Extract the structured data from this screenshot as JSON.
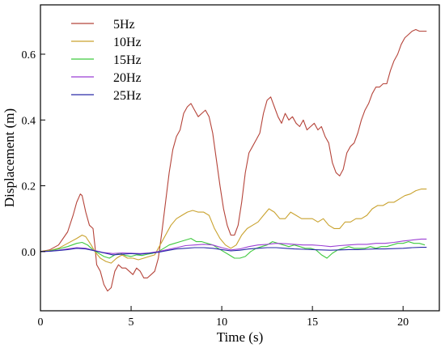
{
  "chart_data": {
    "type": "line",
    "xlabel": "Time (s)",
    "ylabel": "Displacement (m)",
    "xlim": [
      0,
      22
    ],
    "ylim": [
      -0.18,
      0.75
    ],
    "xticks": [
      0,
      5,
      10,
      15,
      20
    ],
    "yticks": [
      0.0,
      0.2,
      0.4,
      0.6
    ],
    "xtick_labels": [
      "0",
      "5",
      "10",
      "15",
      "20"
    ],
    "ytick_labels": [
      "0.0",
      "0.2",
      "0.4",
      "0.6"
    ],
    "grid": false,
    "legend_position": "top-left",
    "series": [
      {
        "name": "5Hz",
        "color": "#b5443a",
        "x": [
          0,
          0.5,
          1.0,
          1.5,
          1.8,
          2.0,
          2.2,
          2.3,
          2.5,
          2.7,
          2.9,
          3.0,
          3.1,
          3.3,
          3.5,
          3.7,
          3.9,
          4.1,
          4.3,
          4.5,
          4.7,
          4.9,
          5.1,
          5.3,
          5.5,
          5.7,
          5.9,
          6.1,
          6.3,
          6.5,
          6.7,
          6.9,
          7.1,
          7.3,
          7.5,
          7.7,
          7.9,
          8.1,
          8.3,
          8.5,
          8.7,
          8.9,
          9.1,
          9.3,
          9.5,
          9.7,
          9.9,
          10.1,
          10.3,
          10.5,
          10.7,
          10.9,
          11.1,
          11.3,
          11.5,
          11.7,
          11.9,
          12.1,
          12.3,
          12.5,
          12.7,
          12.9,
          13.1,
          13.3,
          13.5,
          13.7,
          13.9,
          14.1,
          14.3,
          14.5,
          14.7,
          14.9,
          15.1,
          15.3,
          15.5,
          15.7,
          15.9,
          16.1,
          16.3,
          16.5,
          16.7,
          16.9,
          17.1,
          17.3,
          17.5,
          17.7,
          17.9,
          18.1,
          18.3,
          18.5,
          18.7,
          18.9,
          19.1,
          19.3,
          19.5,
          19.7,
          19.9,
          20.1,
          20.3,
          20.5,
          20.7,
          20.9,
          21.1,
          21.3
        ],
        "y": [
          0,
          0.005,
          0.02,
          0.06,
          0.11,
          0.15,
          0.175,
          0.17,
          0.12,
          0.08,
          0.07,
          0.02,
          -0.04,
          -0.06,
          -0.1,
          -0.12,
          -0.11,
          -0.06,
          -0.04,
          -0.05,
          -0.05,
          -0.06,
          -0.07,
          -0.05,
          -0.06,
          -0.08,
          -0.08,
          -0.07,
          -0.06,
          -0.02,
          0.06,
          0.15,
          0.24,
          0.31,
          0.35,
          0.37,
          0.42,
          0.44,
          0.45,
          0.43,
          0.41,
          0.42,
          0.43,
          0.41,
          0.36,
          0.28,
          0.2,
          0.13,
          0.08,
          0.05,
          0.05,
          0.08,
          0.15,
          0.24,
          0.3,
          0.32,
          0.34,
          0.36,
          0.42,
          0.46,
          0.47,
          0.44,
          0.41,
          0.39,
          0.42,
          0.4,
          0.41,
          0.39,
          0.38,
          0.4,
          0.37,
          0.38,
          0.39,
          0.37,
          0.38,
          0.35,
          0.33,
          0.27,
          0.24,
          0.23,
          0.25,
          0.3,
          0.32,
          0.33,
          0.36,
          0.4,
          0.43,
          0.45,
          0.48,
          0.5,
          0.5,
          0.51,
          0.51,
          0.55,
          0.58,
          0.6,
          0.63,
          0.65,
          0.66,
          0.67,
          0.675,
          0.67,
          0.67,
          0.67
        ]
      },
      {
        "name": "10Hz",
        "color": "#c9a22e",
        "x": [
          0,
          0.5,
          1.0,
          1.5,
          2.0,
          2.3,
          2.5,
          2.8,
          3.0,
          3.3,
          3.6,
          3.9,
          4.2,
          4.5,
          4.8,
          5.1,
          5.4,
          5.7,
          6.0,
          6.3,
          6.6,
          6.9,
          7.2,
          7.5,
          7.8,
          8.1,
          8.4,
          8.7,
          9.0,
          9.3,
          9.6,
          9.9,
          10.2,
          10.5,
          10.8,
          11.1,
          11.4,
          11.7,
          12.0,
          12.3,
          12.6,
          12.9,
          13.2,
          13.5,
          13.8,
          14.1,
          14.4,
          14.7,
          15.0,
          15.3,
          15.6,
          15.9,
          16.2,
          16.5,
          16.8,
          17.1,
          17.4,
          17.7,
          18.0,
          18.3,
          18.6,
          18.9,
          19.2,
          19.5,
          19.8,
          20.1,
          20.4,
          20.7,
          21.0,
          21.3
        ],
        "y": [
          0,
          0.003,
          0.01,
          0.025,
          0.04,
          0.05,
          0.045,
          0.02,
          0,
          -0.02,
          -0.03,
          -0.035,
          -0.02,
          -0.01,
          -0.02,
          -0.02,
          -0.025,
          -0.02,
          -0.015,
          -0.01,
          0.02,
          0.05,
          0.08,
          0.1,
          0.11,
          0.12,
          0.125,
          0.12,
          0.12,
          0.11,
          0.07,
          0.04,
          0.02,
          0.01,
          0.02,
          0.05,
          0.07,
          0.08,
          0.09,
          0.11,
          0.13,
          0.12,
          0.1,
          0.1,
          0.12,
          0.11,
          0.1,
          0.1,
          0.1,
          0.09,
          0.1,
          0.08,
          0.07,
          0.07,
          0.09,
          0.09,
          0.1,
          0.1,
          0.11,
          0.13,
          0.14,
          0.14,
          0.15,
          0.15,
          0.16,
          0.17,
          0.175,
          0.185,
          0.19,
          0.19
        ]
      },
      {
        "name": "15Hz",
        "color": "#3fc93f",
        "x": [
          0,
          0.5,
          1.0,
          1.5,
          2.0,
          2.3,
          2.6,
          2.9,
          3.2,
          3.5,
          3.8,
          4.1,
          4.4,
          4.7,
          5.0,
          5.3,
          5.6,
          5.9,
          6.2,
          6.5,
          6.8,
          7.1,
          7.4,
          7.7,
          8.0,
          8.3,
          8.6,
          8.9,
          9.2,
          9.5,
          9.8,
          10.1,
          10.4,
          10.7,
          11.0,
          11.3,
          11.6,
          11.9,
          12.2,
          12.5,
          12.8,
          13.1,
          13.4,
          13.7,
          14.0,
          14.3,
          14.6,
          14.9,
          15.2,
          15.5,
          15.8,
          16.1,
          16.4,
          16.7,
          17.0,
          17.3,
          17.6,
          17.9,
          18.2,
          18.5,
          18.8,
          19.1,
          19.4,
          19.7,
          20.0,
          20.3,
          20.6,
          20.9,
          21.2
        ],
        "y": [
          0,
          0.002,
          0.008,
          0.015,
          0.025,
          0.028,
          0.02,
          0.005,
          -0.005,
          -0.015,
          -0.02,
          -0.01,
          -0.005,
          -0.012,
          -0.015,
          -0.01,
          -0.012,
          -0.008,
          -0.005,
          0,
          0.01,
          0.02,
          0.025,
          0.03,
          0.035,
          0.04,
          0.03,
          0.03,
          0.025,
          0.02,
          0.01,
          0,
          -0.01,
          -0.02,
          -0.02,
          -0.015,
          0,
          0.01,
          0.015,
          0.02,
          0.03,
          0.025,
          0.02,
          0.015,
          0.02,
          0.015,
          0.01,
          0.01,
          0.005,
          -0.01,
          -0.02,
          -0.005,
          0.005,
          0.01,
          0.015,
          0.01,
          0.01,
          0.01,
          0.015,
          0.01,
          0.015,
          0.015,
          0.02,
          0.025,
          0.025,
          0.03,
          0.025,
          0.025,
          0.02
        ]
      },
      {
        "name": "20Hz",
        "color": "#9b3fd4",
        "x": [
          0,
          0.5,
          1.0,
          1.5,
          2.0,
          2.5,
          3.0,
          3.5,
          4.0,
          4.5,
          5.0,
          5.5,
          6.0,
          6.5,
          7.0,
          7.5,
          8.0,
          8.5,
          9.0,
          9.5,
          10.0,
          10.5,
          11.0,
          11.5,
          12.0,
          12.5,
          13.0,
          13.5,
          14.0,
          14.5,
          15.0,
          15.5,
          16.0,
          16.5,
          17.0,
          17.5,
          18.0,
          18.5,
          19.0,
          19.5,
          20.0,
          20.5,
          21.0,
          21.3
        ],
        "y": [
          0,
          0.001,
          0.004,
          0.008,
          0.012,
          0.01,
          0.003,
          -0.003,
          -0.006,
          -0.004,
          -0.005,
          -0.006,
          -0.004,
          0,
          0.006,
          0.012,
          0.018,
          0.02,
          0.022,
          0.02,
          0.012,
          0.005,
          0.008,
          0.015,
          0.02,
          0.022,
          0.025,
          0.024,
          0.022,
          0.02,
          0.02,
          0.018,
          0.015,
          0.018,
          0.02,
          0.022,
          0.022,
          0.025,
          0.025,
          0.028,
          0.032,
          0.035,
          0.038,
          0.038
        ]
      },
      {
        "name": "25Hz",
        "color": "#2a2aa8",
        "x": [
          0,
          0.5,
          1.0,
          1.5,
          2.0,
          2.5,
          3.0,
          3.5,
          4.0,
          4.5,
          5.0,
          5.5,
          6.0,
          6.5,
          7.0,
          7.5,
          8.0,
          8.5,
          9.0,
          9.5,
          10.0,
          10.5,
          11.0,
          11.5,
          12.0,
          12.5,
          13.0,
          13.5,
          14.0,
          14.5,
          15.0,
          15.5,
          16.0,
          16.5,
          17.0,
          17.5,
          18.0,
          18.5,
          19.0,
          19.5,
          20.0,
          20.5,
          21.0,
          21.3
        ],
        "y": [
          0,
          0.001,
          0.003,
          0.006,
          0.01,
          0.008,
          0.002,
          -0.004,
          -0.01,
          -0.008,
          -0.006,
          -0.008,
          -0.005,
          -0.002,
          0.003,
          0.008,
          0.01,
          0.012,
          0.012,
          0.01,
          0.006,
          0.002,
          0.004,
          0.008,
          0.01,
          0.012,
          0.012,
          0.01,
          0.008,
          0.007,
          0.006,
          0.005,
          0.004,
          0.005,
          0.006,
          0.006,
          0.007,
          0.008,
          0.008,
          0.009,
          0.01,
          0.012,
          0.013,
          0.013
        ]
      }
    ]
  }
}
